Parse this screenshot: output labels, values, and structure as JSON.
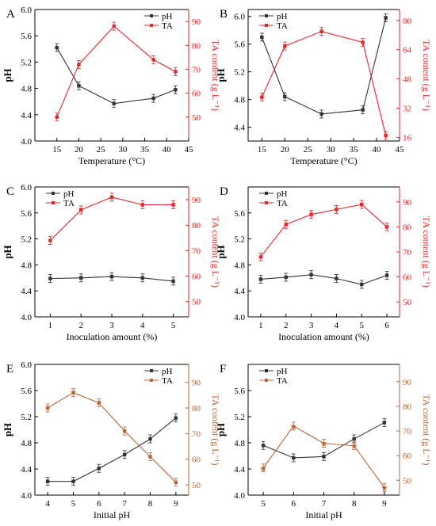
{
  "colors": {
    "ph": "#333333",
    "ta": "#e5262b",
    "ta_brown": "#b5673a",
    "axis": "#000000"
  },
  "chart_data": [
    {
      "type": "line",
      "panel": "A",
      "xlabel": "Temperature (°C)",
      "ylabel": "pH",
      "y2label": "TA content (g L⁻¹)",
      "xlim": [
        10,
        45
      ],
      "xticks": [
        15,
        20,
        25,
        30,
        35,
        40,
        45
      ],
      "ylim": [
        4.0,
        6.0
      ],
      "yticks": [
        4.0,
        4.4,
        4.8,
        5.2,
        5.6,
        6.0
      ],
      "y2lim": [
        40,
        95
      ],
      "y2ticks": [
        50,
        60,
        70,
        80,
        90
      ],
      "legend": "top-right",
      "series": [
        {
          "name": "pH",
          "axis": "left",
          "color_key": "ph",
          "marker": "square",
          "x": [
            15,
            20,
            28,
            37,
            42
          ],
          "values": [
            5.42,
            4.84,
            4.57,
            4.65,
            4.78
          ]
        },
        {
          "name": "TA",
          "axis": "right",
          "color_key": "ta",
          "marker": "square",
          "x": [
            15,
            20,
            28,
            37,
            42
          ],
          "values": [
            50,
            72,
            88,
            74,
            69
          ]
        }
      ]
    },
    {
      "type": "line",
      "panel": "B",
      "xlabel": "Temperature (°C)",
      "ylabel": "pH",
      "y2label": "TA content (g L⁻¹)",
      "xlim": [
        12,
        45
      ],
      "xticks": [
        15,
        20,
        25,
        30,
        35,
        40,
        45
      ],
      "ylim": [
        4.2,
        6.1
      ],
      "yticks": [
        4.4,
        4.8,
        5.2,
        5.6,
        6.0
      ],
      "y2lim": [
        14,
        86
      ],
      "y2ticks": [
        16,
        32,
        48,
        64,
        80
      ],
      "legend": "top-left",
      "series": [
        {
          "name": "pH",
          "axis": "left",
          "color_key": "ph",
          "marker": "square",
          "x": [
            15,
            20,
            28,
            37,
            42
          ],
          "values": [
            5.7,
            4.84,
            4.59,
            4.65,
            5.98
          ]
        },
        {
          "name": "TA",
          "axis": "right",
          "color_key": "ta",
          "marker": "square",
          "x": [
            15,
            20,
            28,
            37,
            42
          ],
          "values": [
            38,
            66,
            74,
            68,
            17
          ]
        }
      ]
    },
    {
      "type": "line",
      "panel": "C",
      "xlabel": "Inoculation amount (%)",
      "ylabel": "pH",
      "y2label": "TA content (g L⁻¹)",
      "xlim": [
        0.5,
        5.5
      ],
      "xticks": [
        1,
        2,
        3,
        4,
        5
      ],
      "ylim": [
        4.0,
        6.0
      ],
      "yticks": [
        4.0,
        4.4,
        4.8,
        5.2,
        5.6,
        6.0
      ],
      "y2lim": [
        44,
        95
      ],
      "y2ticks": [
        50,
        60,
        70,
        80,
        90
      ],
      "legend": "top-left",
      "series": [
        {
          "name": "pH",
          "axis": "left",
          "color_key": "ph",
          "marker": "square",
          "x": [
            1,
            2,
            3,
            4,
            5
          ],
          "values": [
            4.59,
            4.6,
            4.62,
            4.6,
            4.55
          ]
        },
        {
          "name": "TA",
          "axis": "right",
          "color_key": "ta",
          "marker": "square",
          "x": [
            1,
            2,
            3,
            4,
            5
          ],
          "values": [
            74,
            86,
            91,
            88,
            88
          ]
        }
      ]
    },
    {
      "type": "line",
      "panel": "D",
      "xlabel": "Inoculation amount (%)",
      "ylabel": "pH",
      "y2label": "TA content (g L⁻¹)",
      "xlim": [
        0.5,
        6.5
      ],
      "xticks": [
        1,
        2,
        3,
        4,
        5,
        6
      ],
      "ylim": [
        4.0,
        6.0
      ],
      "yticks": [
        4.0,
        4.4,
        4.8,
        5.2,
        5.6
      ],
      "y2lim": [
        44,
        96
      ],
      "y2ticks": [
        50,
        60,
        70,
        80,
        90
      ],
      "legend": "top-left",
      "series": [
        {
          "name": "pH",
          "axis": "left",
          "color_key": "ph",
          "marker": "square",
          "x": [
            1,
            2,
            3,
            4,
            5,
            6
          ],
          "values": [
            4.58,
            4.61,
            4.65,
            4.59,
            4.5,
            4.64
          ]
        },
        {
          "name": "TA",
          "axis": "right",
          "color_key": "ta",
          "marker": "square",
          "x": [
            1,
            2,
            3,
            4,
            5,
            6
          ],
          "values": [
            68,
            81,
            85,
            87,
            89,
            80
          ]
        }
      ]
    },
    {
      "type": "line",
      "panel": "E",
      "xlabel": "Initial pH",
      "ylabel": "pH",
      "y2label": "TA content (g L⁻¹)",
      "xlim": [
        3.5,
        9.5
      ],
      "xticks": [
        4,
        5,
        6,
        7,
        8,
        9
      ],
      "ylim": [
        4.0,
        6.0
      ],
      "yticks": [
        4.0,
        4.4,
        4.8,
        5.2,
        5.6,
        6.0
      ],
      "y2lim": [
        46,
        97
      ],
      "y2ticks": [
        50,
        60,
        70,
        80,
        90
      ],
      "legend": "top-right",
      "series": [
        {
          "name": "pH",
          "axis": "left",
          "color_key": "ph",
          "marker": "square",
          "x": [
            4,
            5,
            6,
            7,
            8,
            9
          ],
          "values": [
            4.21,
            4.21,
            4.41,
            4.62,
            4.86,
            5.18
          ]
        },
        {
          "name": "TA",
          "axis": "right",
          "color_key": "ta_brown",
          "marker": "square",
          "x": [
            4,
            5,
            6,
            7,
            8,
            9
          ],
          "values": [
            80,
            86,
            82,
            71,
            61,
            51
          ]
        }
      ]
    },
    {
      "type": "line",
      "panel": "F",
      "xlabel": "Initial pH",
      "ylabel": "pH",
      "y2label": "TA content (g L⁻¹)",
      "xlim": [
        4.5,
        9.5
      ],
      "xticks": [
        5,
        6,
        7,
        8,
        9
      ],
      "ylim": [
        4.0,
        6.0
      ],
      "yticks": [
        4.0,
        4.4,
        4.8,
        5.2,
        5.6
      ],
      "y2lim": [
        44,
        97
      ],
      "y2ticks": [
        50,
        60,
        70,
        80,
        90
      ],
      "legend": "top-left",
      "series": [
        {
          "name": "pH",
          "axis": "left",
          "color_key": "ph",
          "marker": "square",
          "x": [
            5,
            6,
            7,
            8,
            9
          ],
          "values": [
            4.76,
            4.57,
            4.59,
            4.86,
            5.11
          ]
        },
        {
          "name": "TA",
          "axis": "right",
          "color_key": "ta_brown",
          "marker": "star",
          "x": [
            5,
            6,
            7,
            8,
            9
          ],
          "values": [
            55,
            72,
            65,
            64,
            47
          ]
        }
      ]
    }
  ]
}
